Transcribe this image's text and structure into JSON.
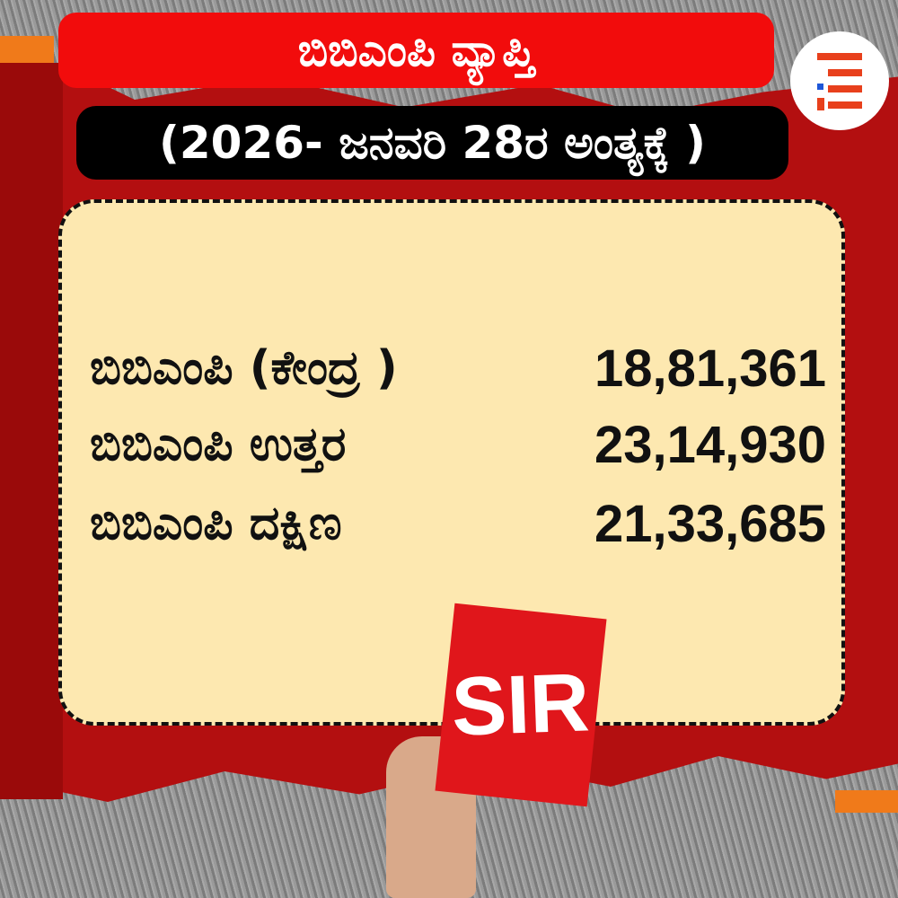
{
  "title": "ಬಿಬಿಎಂಪಿ ವ್ಯಾಪ್ತಿ",
  "subtitle": "(2026- ಜನವರಿ 28ರ ಅಂತ್ಯಕ್ಕೆ )",
  "rows": [
    {
      "label": "ಬಿಬಿಎಂಪಿ (ಕೇಂದ್ರ )",
      "value": "18,81,361"
    },
    {
      "label": "ಬಿಬಿಎಂಪಿ ಉತ್ತರ",
      "value": "23,14,930"
    },
    {
      "label": "ಬಿಬಿಎಂಪಿ ದಕ್ಷಿಣ",
      "value": "21,33,685"
    }
  ],
  "sign_text": "SIR",
  "colors": {
    "title_bg": "#f20c0c",
    "subtitle_bg": "#000000",
    "card_bg": "#fde8b0",
    "brand": "#e8401c"
  }
}
